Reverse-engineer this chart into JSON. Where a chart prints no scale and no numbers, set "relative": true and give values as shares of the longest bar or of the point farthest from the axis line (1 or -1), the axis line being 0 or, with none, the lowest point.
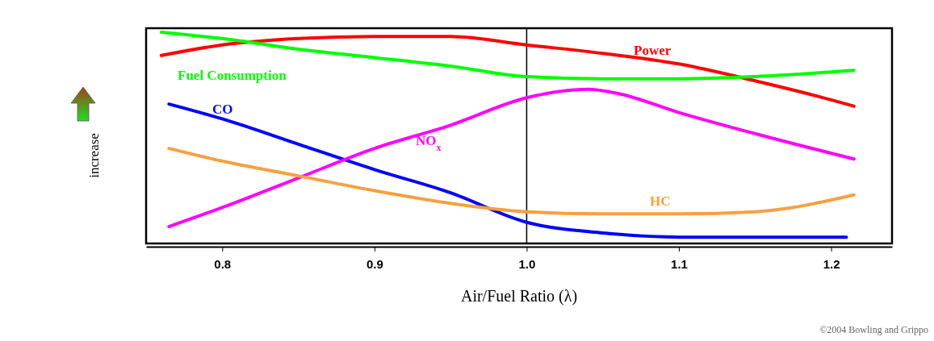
{
  "chart_data": {
    "type": "line",
    "relative": true,
    "xlabel": "Air/Fuel Ratio (λ)",
    "ylabel": "increase",
    "xlim": [
      0.75,
      1.24
    ],
    "xticks": [
      0.8,
      0.9,
      {
        "value": 1,
        "label": "1.0"
      },
      1.1,
      1.2
    ],
    "grid": false,
    "legend": false,
    "marker": "none",
    "line_style": "solid",
    "ref_lines": [
      {
        "axis": "x",
        "value": 1,
        "color": "#000000"
      }
    ],
    "series": [
      {
        "name": "Power",
        "color": "#ff0000",
        "x": [
          0.76,
          0.8,
          0.85,
          0.9,
          0.95,
          1.0,
          1.05,
          1.1,
          1.15,
          1.2,
          1.215
        ],
        "values": [
          0.89,
          0.94,
          0.97,
          0.98,
          0.98,
          0.94,
          0.9,
          0.85,
          0.77,
          0.68,
          0.65
        ]
      },
      {
        "name": "Fuel Consumption",
        "color": "#00ff00",
        "x": [
          0.76,
          0.8,
          0.85,
          0.9,
          0.95,
          1.0,
          1.05,
          1.1,
          1.15,
          1.215
        ],
        "values": [
          1.0,
          0.97,
          0.92,
          0.88,
          0.84,
          0.79,
          0.78,
          0.78,
          0.79,
          0.82
        ]
      },
      {
        "name": "CO",
        "color": "#0000ff",
        "x": [
          0.765,
          0.8,
          0.85,
          0.9,
          0.95,
          1.0,
          1.05,
          1.1,
          1.21
        ],
        "values": [
          0.66,
          0.59,
          0.47,
          0.35,
          0.24,
          0.1,
          0.05,
          0.03,
          0.03
        ]
      },
      {
        "name": "NO$_{x}$",
        "color": "#ff00ff",
        "x": [
          0.765,
          0.8,
          0.85,
          0.9,
          0.95,
          1.0,
          1.04,
          1.06,
          1.1,
          1.15,
          1.215
        ],
        "values": [
          0.08,
          0.17,
          0.31,
          0.45,
          0.56,
          0.69,
          0.73,
          0.71,
          0.62,
          0.52,
          0.4
        ]
      },
      {
        "name": "HC",
        "color": "#f7a040",
        "x": [
          0.765,
          0.8,
          0.85,
          0.9,
          0.95,
          1.0,
          1.05,
          1.1,
          1.15,
          1.215
        ],
        "values": [
          0.45,
          0.39,
          0.32,
          0.25,
          0.19,
          0.15,
          0.14,
          0.14,
          0.15,
          0.23
        ]
      }
    ],
    "annotations": [
      "©2004 Bowling and Grippo"
    ]
  }
}
